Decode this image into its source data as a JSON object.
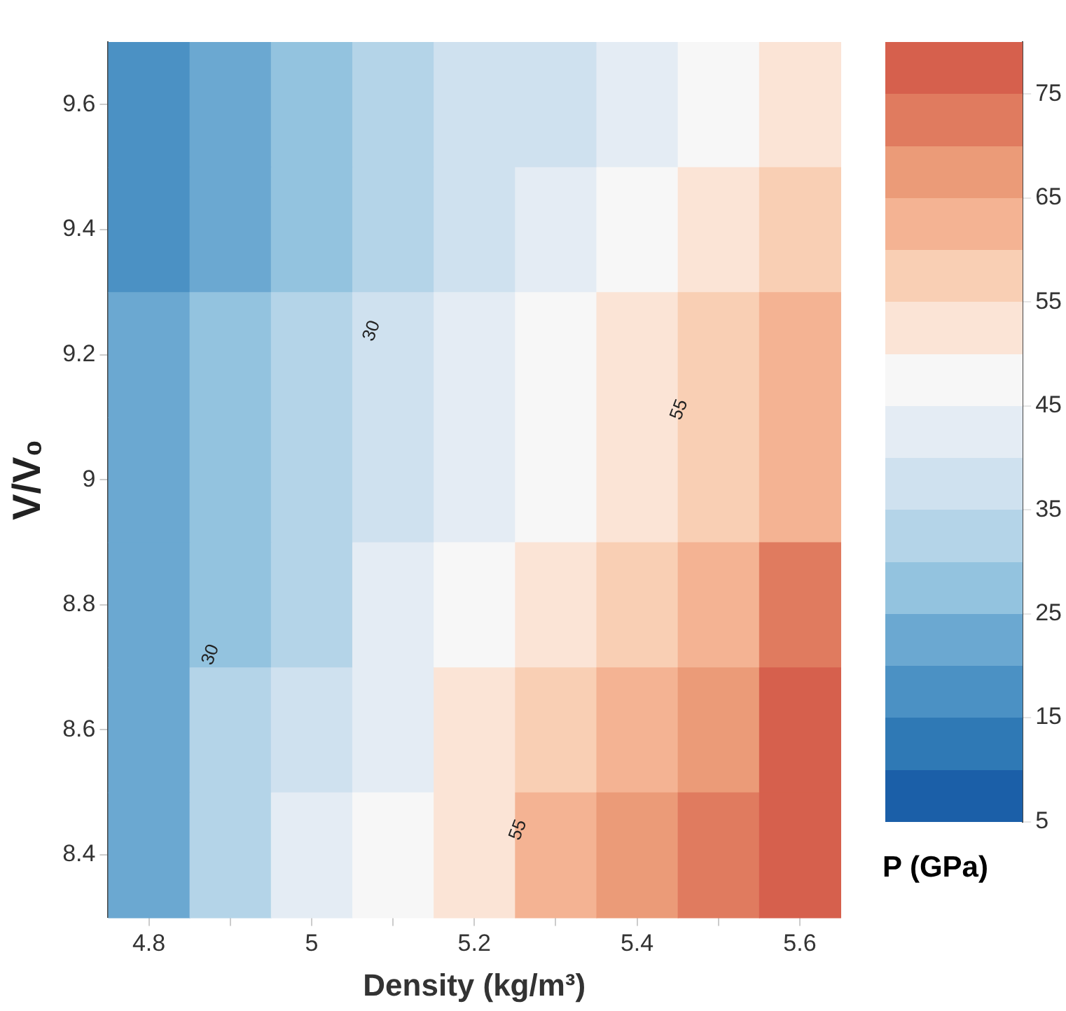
{
  "chart_data": {
    "type": "heatmap",
    "xlabel": "Density (kg/m³)",
    "ylabel": "V/V₀",
    "clabel": "P (GPa)",
    "categories": [
      "4.8",
      null,
      "5",
      null,
      "5.2",
      null,
      "5.4",
      null,
      "5.6"
    ],
    "y_categories": [
      "9.6",
      "9.4",
      "9.2",
      "9",
      "8.8",
      "8.6",
      "8.4"
    ],
    "cells": [
      [
        17,
        22,
        27,
        31,
        35,
        39,
        44,
        49,
        53
      ],
      [
        18,
        23,
        28,
        33,
        37,
        42,
        47,
        52,
        57
      ],
      [
        20,
        25,
        31,
        35,
        40,
        46,
        51,
        56,
        61
      ],
      [
        21,
        27,
        32,
        37,
        43,
        49,
        54,
        59,
        64
      ],
      [
        22,
        28,
        34,
        40,
        46,
        52,
        58,
        64,
        70
      ],
      [
        23,
        30,
        37,
        43,
        50,
        56,
        62,
        68,
        75
      ],
      [
        24,
        32,
        40,
        47,
        54,
        60,
        67,
        74,
        80
      ]
    ],
    "clim": [
      5,
      80
    ],
    "cticks": [
      5,
      15,
      25,
      35,
      45,
      55,
      65,
      75
    ],
    "annotations": [
      "30",
      "30",
      "55",
      "55"
    ]
  }
}
